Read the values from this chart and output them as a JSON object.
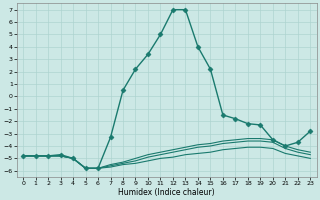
{
  "xlabel": "Humidex (Indice chaleur)",
  "xlim": [
    -0.5,
    23.5
  ],
  "ylim": [
    -6.5,
    7.5
  ],
  "xticks": [
    0,
    1,
    2,
    3,
    4,
    5,
    6,
    7,
    8,
    9,
    10,
    11,
    12,
    13,
    14,
    15,
    16,
    17,
    18,
    19,
    20,
    21,
    22,
    23
  ],
  "yticks": [
    -6,
    -5,
    -4,
    -3,
    -2,
    -1,
    0,
    1,
    2,
    3,
    4,
    5,
    6,
    7
  ],
  "bg_color": "#cce8e5",
  "line_color": "#1a7a6e",
  "grid_color": "#aed4d0",
  "curves": [
    {
      "x": [
        0,
        1,
        2,
        3,
        4,
        5,
        6,
        7,
        8,
        9,
        10,
        11,
        12,
        13,
        14,
        15,
        16,
        17,
        18,
        19,
        20,
        21,
        22,
        23
      ],
      "y": [
        -4.8,
        -4.8,
        -4.8,
        -4.7,
        -5.0,
        -5.8,
        -5.8,
        -3.3,
        0.5,
        2.2,
        3.4,
        5.0,
        7.0,
        7.0,
        4.0,
        2.2,
        -1.5,
        -1.8,
        -2.2,
        -2.3,
        -3.5,
        -4.0,
        -3.7,
        -2.8
      ],
      "style": "solid",
      "marker": "D",
      "markersize": 2.5,
      "linewidth": 1.0
    },
    {
      "x": [
        0,
        1,
        2,
        3,
        4,
        5,
        6,
        7,
        8,
        9,
        10,
        11,
        12,
        13,
        14,
        15,
        16,
        17,
        18,
        19,
        20,
        21,
        22,
        23
      ],
      "y": [
        -4.8,
        -4.8,
        -4.8,
        -4.8,
        -5.0,
        -5.8,
        -5.8,
        -5.5,
        -5.3,
        -5.0,
        -4.7,
        -4.5,
        -4.3,
        -4.1,
        -3.9,
        -3.8,
        -3.6,
        -3.5,
        -3.4,
        -3.4,
        -3.5,
        -4.0,
        -4.3,
        -4.5
      ],
      "style": "solid",
      "marker": null,
      "markersize": 0,
      "linewidth": 0.8
    },
    {
      "x": [
        0,
        1,
        2,
        3,
        4,
        5,
        6,
        7,
        8,
        9,
        10,
        11,
        12,
        13,
        14,
        15,
        16,
        17,
        18,
        19,
        20,
        21,
        22,
        23
      ],
      "y": [
        -4.8,
        -4.8,
        -4.8,
        -4.8,
        -5.0,
        -5.8,
        -5.8,
        -5.6,
        -5.4,
        -5.2,
        -4.9,
        -4.7,
        -4.5,
        -4.3,
        -4.1,
        -4.0,
        -3.8,
        -3.7,
        -3.6,
        -3.6,
        -3.7,
        -4.2,
        -4.5,
        -4.7
      ],
      "style": "solid",
      "marker": null,
      "markersize": 0,
      "linewidth": 0.8
    },
    {
      "x": [
        0,
        1,
        2,
        3,
        4,
        5,
        6,
        7,
        8,
        9,
        10,
        11,
        12,
        13,
        14,
        15,
        16,
        17,
        18,
        19,
        20,
        21,
        22,
        23
      ],
      "y": [
        -4.8,
        -4.8,
        -4.8,
        -4.8,
        -5.0,
        -5.8,
        -5.8,
        -5.7,
        -5.5,
        -5.4,
        -5.2,
        -5.0,
        -4.9,
        -4.7,
        -4.6,
        -4.5,
        -4.3,
        -4.2,
        -4.1,
        -4.1,
        -4.2,
        -4.6,
        -4.8,
        -5.0
      ],
      "style": "solid",
      "marker": null,
      "markersize": 0,
      "linewidth": 0.8
    }
  ]
}
